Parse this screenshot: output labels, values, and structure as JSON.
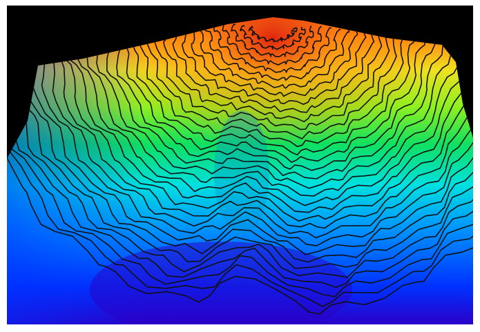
{
  "scene": {
    "subject": "topographic-terrain-render",
    "background_color": "#000000",
    "frame_color": "#ffffff",
    "contour_color": "#111111",
    "color_ramp": [
      "#2a00c8",
      "#0030ff",
      "#0090ff",
      "#00e0e0",
      "#10e060",
      "#8ef020",
      "#f0e020",
      "#ff8a10",
      "#e02010"
    ]
  }
}
